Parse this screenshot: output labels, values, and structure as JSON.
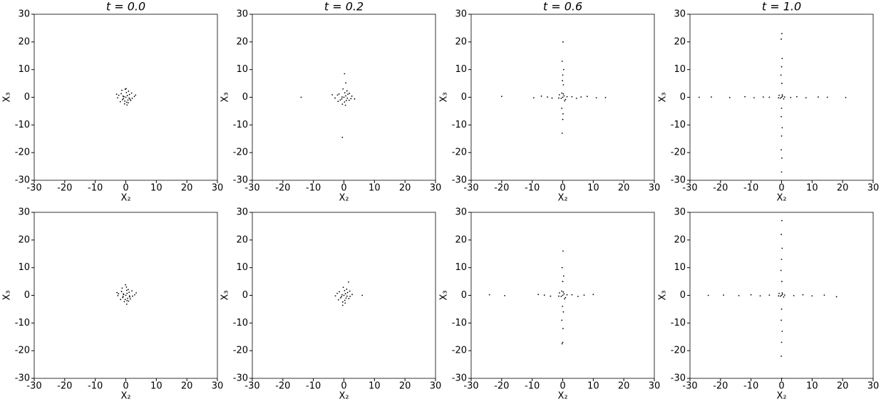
{
  "chart_data": [
    {
      "type": "scatter",
      "title": "t = 0.0",
      "xlabel": "X₂",
      "ylabel": "X₃",
      "color": "#000000",
      "xlim": [
        -30,
        30
      ],
      "ylim": [
        -30,
        30
      ],
      "xticks": [
        -30,
        -20,
        -10,
        0,
        10,
        20,
        30
      ],
      "yticks": [
        -30,
        -20,
        -10,
        0,
        10,
        20,
        30
      ],
      "x": [
        0,
        0.5,
        -0.8,
        1.2,
        -1.5,
        0.3,
        2.1,
        -2.3,
        0.9,
        -0.4,
        1.6,
        -1.1,
        0.2,
        2.8,
        -2.7,
        0.7,
        -0.2,
        1.9,
        -1.8,
        0.4,
        -0.6,
        1.1,
        -1.3,
        3.2,
        -3,
        0.1,
        0.8,
        -0.9,
        1.4,
        -0.3
      ],
      "y": [
        0,
        0.6,
        -0.5,
        1,
        1.3,
        -1.8,
        -0.4,
        0.7,
        2.2,
        -2.4,
        -1.2,
        -0.9,
        1.7,
        0.3,
        -0.2,
        -1,
        2.9,
        1.5,
        -1.6,
        -2.8,
        0.2,
        -0.3,
        2.5,
        0.8,
        1.1,
        3.1,
        -2,
        0.4,
        -0.7,
        -1.4
      ]
    },
    {
      "type": "scatter",
      "title": "t = 0.2",
      "xlabel": "X₂",
      "ylabel": "X₃",
      "color": "#000000",
      "xlim": [
        -30,
        30
      ],
      "ylim": [
        -30,
        30
      ],
      "xticks": [
        -30,
        -20,
        -10,
        0,
        10,
        20,
        30
      ],
      "yticks": [
        -30,
        -20,
        -10,
        0,
        10,
        20,
        30
      ],
      "x": [
        0,
        0.6,
        -0.7,
        1.3,
        -1.6,
        0.2,
        2.3,
        -2.1,
        1,
        -0.5,
        1.7,
        -1.2,
        0.3,
        2.6,
        -2.9,
        0.8,
        -0.3,
        1.8,
        -1.9,
        0.5,
        -0.6,
        1.1,
        -14,
        0.2,
        -0.5,
        0.6,
        3.5,
        -3.8
      ],
      "y": [
        0,
        0.5,
        -0.6,
        1.1,
        1.2,
        -1.7,
        -0.5,
        0.8,
        2.3,
        -2.5,
        -1.1,
        -1,
        1.6,
        0.4,
        -0.3,
        -1.2,
        3,
        1.4,
        -1.5,
        -2.9,
        0.1,
        -0.4,
        0,
        8.5,
        -14.5,
        5.2,
        -0.6,
        0.9
      ]
    },
    {
      "type": "scatter",
      "title": "t = 0.6",
      "xlabel": "X₂",
      "ylabel": "X₃",
      "color": "#000000",
      "xlim": [
        -30,
        30
      ],
      "ylim": [
        -30,
        30
      ],
      "xticks": [
        -30,
        -20,
        -10,
        0,
        10,
        20,
        30
      ],
      "yticks": [
        -30,
        -20,
        -10,
        0,
        10,
        20,
        30
      ],
      "x": [
        0,
        0.4,
        -0.5,
        0.9,
        -1.1,
        0.2,
        1.4,
        -1.3,
        0.6,
        -0.3,
        -20,
        -9.5,
        -7,
        -5,
        -3.5,
        3,
        4.5,
        6,
        8,
        11,
        14,
        0.1,
        -0.2,
        0.3,
        0,
        -0.1,
        0.2,
        -0.3,
        0.1,
        0,
        -0.2
      ],
      "y": [
        0,
        0.5,
        -0.4,
        -0.8,
        0.9,
        1.2,
        0.2,
        -0.3,
        -1.3,
        1.5,
        0.3,
        -0.2,
        0.4,
        0.1,
        -0.3,
        0.2,
        -0.4,
        0.1,
        0.3,
        -0.2,
        -0.1,
        20,
        13,
        10,
        8,
        6,
        4.5,
        -4,
        -6,
        -8,
        -13
      ]
    },
    {
      "type": "scatter",
      "title": "t = 1.0",
      "xlabel": "X₂",
      "ylabel": "X₃",
      "color": "#000000",
      "xlim": [
        -30,
        30
      ],
      "ylim": [
        -30,
        30
      ],
      "xticks": [
        -30,
        -20,
        -10,
        0,
        10,
        20,
        30
      ],
      "yticks": [
        -30,
        -20,
        -10,
        0,
        10,
        20,
        30
      ],
      "x": [
        0,
        0.3,
        -0.4,
        0.7,
        -0.8,
        0.2,
        1,
        -1,
        -27,
        -23,
        -17,
        -12,
        -9,
        -6,
        -4,
        3,
        5,
        8,
        12,
        15,
        21,
        0.1,
        -0.1,
        0.2,
        0,
        -0.2,
        0.1,
        0,
        -0.1,
        0.2,
        0,
        -0.1,
        0.1,
        0
      ],
      "y": [
        0,
        0.4,
        -0.3,
        -0.6,
        0.7,
        0.9,
        0.1,
        -0.2,
        0,
        0.1,
        -0.1,
        0.2,
        -0.2,
        0.1,
        0,
        -0.1,
        0.2,
        -0.2,
        0.1,
        0,
        -0.1,
        23,
        21,
        14,
        11,
        8,
        5,
        -4,
        -7,
        -11,
        -14,
        -19,
        -22,
        -27
      ]
    },
    {
      "type": "scatter",
      "xlabel": "X₂",
      "ylabel": "X₃",
      "color": "#000000",
      "xlim": [
        -30,
        30
      ],
      "ylim": [
        -30,
        30
      ],
      "xticks": [
        -30,
        -20,
        -10,
        0,
        10,
        20,
        30
      ],
      "yticks": [
        -30,
        -20,
        -10,
        0,
        10,
        20,
        30
      ],
      "x": [
        0,
        0.4,
        -0.9,
        1.1,
        -1.4,
        0.4,
        2.2,
        -2.4,
        0.8,
        -0.5,
        1.5,
        -1,
        0.3,
        2.9,
        -2.6,
        0.6,
        -0.1,
        2,
        -1.7,
        0.3,
        -0.7,
        1.2,
        -1.2,
        3.4,
        -2.9,
        0.2,
        0.9,
        -0.8,
        1.3,
        -0.2
      ],
      "y": [
        0,
        0.7,
        -0.4,
        1.1,
        1.4,
        -1.9,
        -0.3,
        0.6,
        2.1,
        -2.3,
        -1.3,
        -0.8,
        1.8,
        0.2,
        -0.1,
        -1.1,
        3.8,
        1.6,
        -1.5,
        -3.2,
        0.3,
        -0.2,
        2.6,
        0.9,
        1,
        3,
        -2.1,
        0.5,
        -0.6,
        -1.5
      ]
    },
    {
      "type": "scatter",
      "xlabel": "X₂",
      "ylabel": "X₃",
      "color": "#000000",
      "xlim": [
        -30,
        30
      ],
      "ylim": [
        -30,
        30
      ],
      "xticks": [
        -30,
        -20,
        -10,
        0,
        10,
        20,
        30
      ],
      "yticks": [
        -30,
        -20,
        -10,
        0,
        10,
        20,
        30
      ],
      "x": [
        0,
        0.5,
        -0.8,
        1.2,
        -1.5,
        0.3,
        2,
        -2.2,
        0.9,
        -0.4,
        1.6,
        -1.1,
        0.2,
        2.7,
        -2.8,
        0.7,
        -0.2,
        1.9,
        -1.8,
        0.4,
        -0.6,
        1,
        6,
        1.5,
        -0.4
      ],
      "y": [
        0,
        0.6,
        -0.5,
        1,
        1.3,
        -1.8,
        -0.4,
        0.7,
        2.2,
        -2.4,
        -1.2,
        -0.9,
        1.7,
        0.3,
        -0.2,
        -1,
        2.9,
        1.5,
        -1.6,
        -2.8,
        0.2,
        -0.3,
        0,
        4.8,
        -3.6
      ]
    },
    {
      "type": "scatter",
      "xlabel": "X₂",
      "ylabel": "X₃",
      "color": "#000000",
      "xlim": [
        -30,
        30
      ],
      "ylim": [
        -30,
        30
      ],
      "xticks": [
        -30,
        -20,
        -10,
        0,
        10,
        20,
        30
      ],
      "yticks": [
        -30,
        -20,
        -10,
        0,
        10,
        20,
        30
      ],
      "x": [
        0,
        0.4,
        -0.5,
        0.9,
        -1.1,
        0.2,
        1.4,
        -1.3,
        0.6,
        -0.3,
        -24,
        -19,
        -8,
        -6,
        -4,
        3,
        5,
        7,
        10,
        0.1,
        -0.2,
        0.3,
        0,
        -0.1,
        0.2,
        -0.3,
        0.1,
        0,
        -0.2
      ],
      "y": [
        0,
        0.5,
        -0.4,
        -0.8,
        0.9,
        1.2,
        0.2,
        -0.3,
        -1.3,
        1.5,
        0.2,
        -0.1,
        0.3,
        0.1,
        -0.3,
        0.2,
        -0.4,
        0.1,
        0.3,
        16,
        10,
        7,
        5,
        -4,
        -6,
        -9,
        -12,
        -17,
        -17.5
      ]
    },
    {
      "type": "scatter",
      "xlabel": "X₂",
      "ylabel": "X₃",
      "color": "#000000",
      "xlim": [
        -30,
        30
      ],
      "ylim": [
        -30,
        30
      ],
      "xticks": [
        -30,
        -20,
        -10,
        0,
        10,
        20,
        30
      ],
      "yticks": [
        -30,
        -20,
        -10,
        0,
        10,
        20,
        30
      ],
      "x": [
        0,
        0.3,
        -0.4,
        0.7,
        -0.8,
        0.2,
        1,
        -1,
        -24,
        -19,
        -14,
        -10,
        -7,
        -4,
        4,
        7,
        10,
        14,
        18,
        0.1,
        -0.1,
        0.2,
        0,
        -0.2,
        0.1,
        0,
        -0.1,
        0.2,
        0,
        -0.1,
        0.1
      ],
      "y": [
        0,
        0.4,
        -0.3,
        -0.6,
        0.7,
        0.9,
        0.1,
        -0.2,
        0,
        0.1,
        -0.1,
        0.2,
        -0.2,
        0.1,
        -0.1,
        0.2,
        -0.2,
        0.1,
        -0.5,
        27,
        22,
        17,
        13,
        9,
        5,
        -5,
        -9,
        -13,
        -17,
        -22,
        -30
      ]
    }
  ]
}
